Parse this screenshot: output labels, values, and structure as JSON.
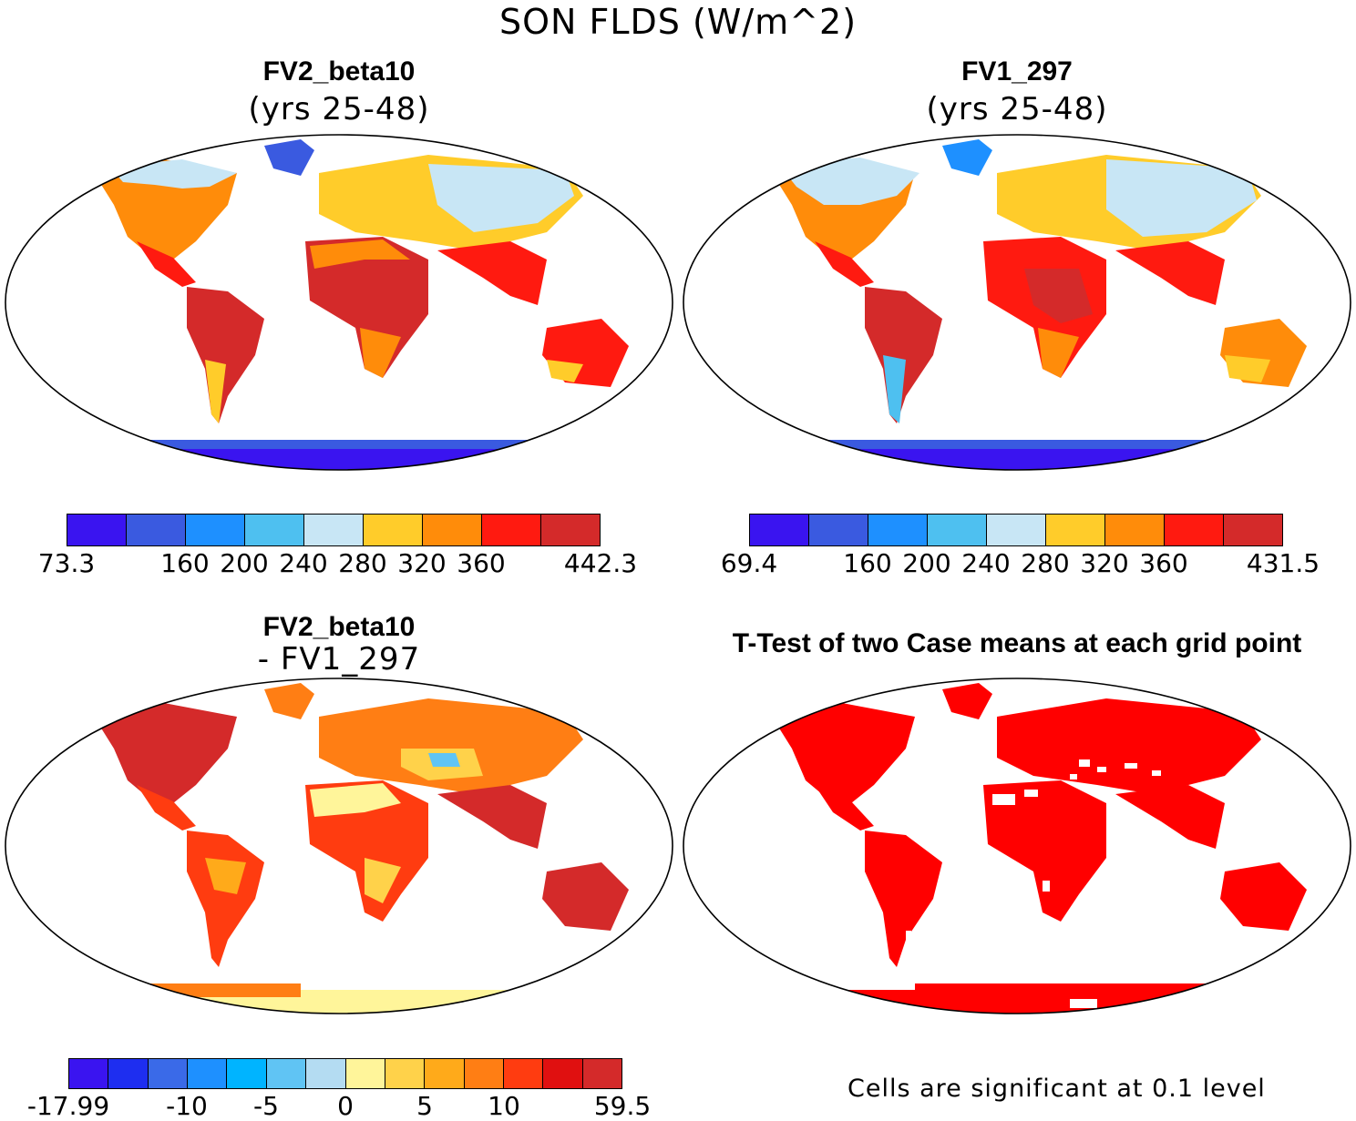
{
  "title": "SON FLDS (W/m^2)",
  "panels": [
    {
      "title": "FV2_beta10",
      "subtitle": "(yrs 25-48)"
    },
    {
      "title": "FV1_297",
      "subtitle": "(yrs 25-48)"
    },
    {
      "title": "FV2_beta10",
      "subtitle": "- FV1_297"
    },
    {
      "title": "T-Test of two Case means at each grid point"
    }
  ],
  "colorbars": [
    {
      "colors": [
        "#3a14f0",
        "#3a5ae0",
        "#1e90ff",
        "#4ec0f0",
        "#c8e6f5",
        "#ffcc2a",
        "#ff8c0a",
        "#ff1a10",
        "#d42a2a"
      ],
      "labels": [
        "73.3",
        "160",
        "200",
        "240",
        "280",
        "320",
        "360",
        "442.3"
      ]
    },
    {
      "colors": [
        "#3a14f0",
        "#3a5ae0",
        "#1e90ff",
        "#4ec0f0",
        "#c8e6f5",
        "#ffcc2a",
        "#ff8c0a",
        "#ff1a10",
        "#d42a2a"
      ],
      "labels": [
        "69.4",
        "160",
        "200",
        "240",
        "280",
        "320",
        "360",
        "431.5"
      ]
    },
    {
      "colors": [
        "#3a14f0",
        "#1e2ef0",
        "#3a6ae8",
        "#1e90ff",
        "#00b4ff",
        "#60c4f4",
        "#b4dcf2",
        "#fff59a",
        "#ffd24a",
        "#ffaa1a",
        "#ff7e14",
        "#ff3c10",
        "#e01010",
        "#d42a2a"
      ],
      "labels": [
        "-17.99",
        "-10",
        "-5",
        "0",
        "5",
        "10",
        "59.5"
      ]
    }
  ],
  "significance_color": "#ff0000",
  "note": "Cells are significant at 0.1 level"
}
